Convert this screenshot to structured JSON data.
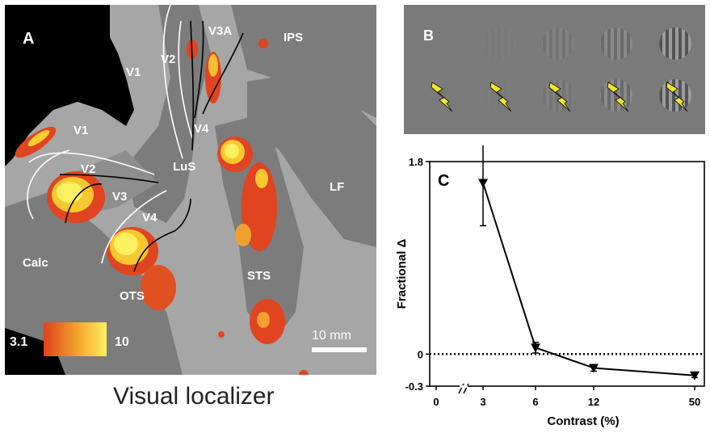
{
  "panelA": {
    "label": "A",
    "regions": [
      "V1",
      "V2",
      "V3A",
      "IPS",
      "V1",
      "V4",
      "V1",
      "V2",
      "LuS",
      "LF",
      "V3",
      "V4",
      "Calc",
      "OTS",
      "STS"
    ],
    "colorbar": {
      "min_label": "3.1",
      "max_label": "10"
    },
    "scalebar_label": "10 mm",
    "caption": "Visual localizer"
  },
  "panelB": {
    "label": "B",
    "gratings": 5,
    "stim_icons": 5
  },
  "panelC": {
    "label": "C",
    "chart_data": {
      "type": "line",
      "xlabel": "Contrast (%)",
      "ylabel": "Fractional Δ",
      "x_tick_labels": [
        "0",
        "3",
        "6",
        "12",
        "50"
      ],
      "y_tick_labels": [
        "1.8",
        "0",
        "-0.3"
      ],
      "ylim": [
        -0.3,
        1.8
      ],
      "series": [
        {
          "x": [
            3,
            6,
            12,
            50
          ],
          "y": [
            1.6,
            0.06,
            -0.13,
            -0.2
          ],
          "err": [
            0.4,
            0.05,
            0.03,
            0.02
          ]
        }
      ],
      "reference_line_y": 0
    }
  }
}
